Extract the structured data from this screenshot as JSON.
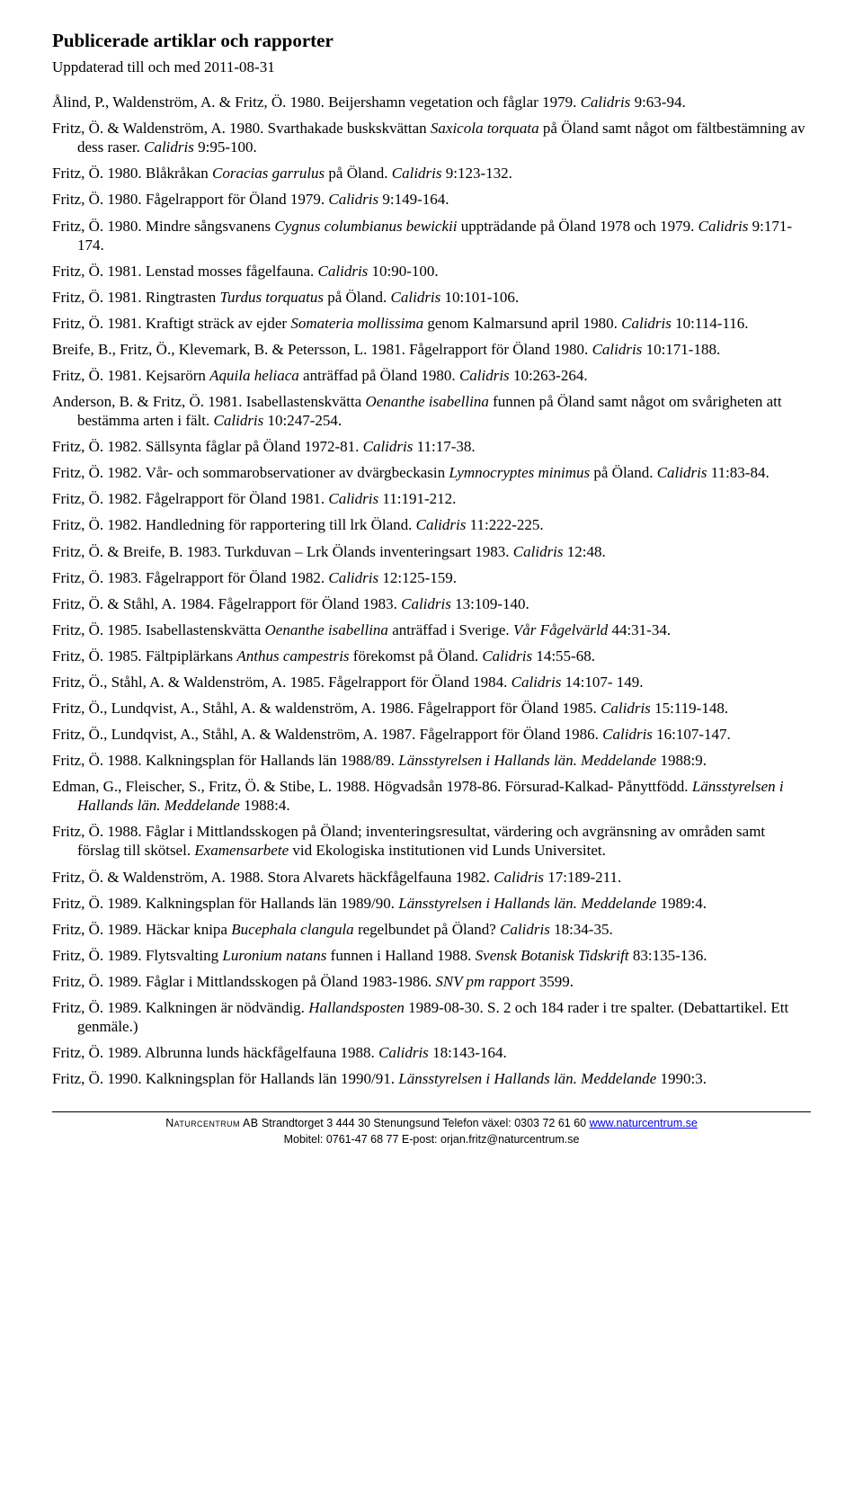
{
  "title": "Publicerade artiklar och rapporter",
  "updated": "Uppdaterad till och med 2011-08-31",
  "entries": [
    {
      "plain": "Ålind, P., Waldenström, A. & Fritz, Ö. 1980. Beijershamn vegetation och fåglar 1979. ",
      "ital": "Calidris",
      "tail": " 9:63-94."
    },
    {
      "plain": "Fritz, Ö. & Waldenström, A. 1980. Svarthakade buskskvättan ",
      "ital": "Saxicola torquata",
      "tail": " på Öland samt något om fältbestämning av dess raser. ",
      "ital2": "Calidris",
      "tail2": " 9:95-100."
    },
    {
      "plain": "Fritz, Ö. 1980. Blåkråkan ",
      "ital": "Coracias garrulus",
      "tail": " på Öland. ",
      "ital2": "Calidris",
      "tail2": " 9:123-132."
    },
    {
      "plain": "Fritz, Ö. 1980. Fågelrapport för Öland 1979. ",
      "ital": "Calidris",
      "tail": " 9:149-164."
    },
    {
      "plain": "Fritz, Ö. 1980. Mindre sångsvanens ",
      "ital": "Cygnus columbianus bewickii",
      "tail": " uppträdande på Öland 1978 och 1979. ",
      "ital2": "Calidris",
      "tail2": " 9:171-174."
    },
    {
      "plain": "Fritz, Ö. 1981. Lenstad mosses fågelfauna. ",
      "ital": "Calidris",
      "tail": " 10:90-100."
    },
    {
      "plain": "Fritz, Ö. 1981. Ringtrasten ",
      "ital": "Turdus torquatus",
      "tail": " på Öland. ",
      "ital2": "Calidris",
      "tail2": " 10:101-106."
    },
    {
      "plain": "Fritz, Ö. 1981. Kraftigt sträck av ejder ",
      "ital": "Somateria mollissima",
      "tail": " genom Kalmarsund april 1980. ",
      "ital2": "Calidris",
      "tail2": " 10:114-116."
    },
    {
      "plain": "Breife, B., Fritz, Ö., Klevemark, B. & Petersson, L. 1981. Fågelrapport för Öland 1980. ",
      "ital": "Calidris",
      "tail": " 10:171-188."
    },
    {
      "plain": "Fritz, Ö. 1981. Kejsarörn ",
      "ital": "Aquila heliaca",
      "tail": " anträffad på Öland 1980. ",
      "ital2": "Calidris",
      "tail2": " 10:263-264."
    },
    {
      "plain": "Anderson, B. & Fritz, Ö. 1981. Isabellastenskvätta ",
      "ital": "Oenanthe isabellina",
      "tail": " funnen på Öland samt något om svårigheten att bestämma arten i fält. ",
      "ital2": "Calidris",
      "tail2": " 10:247-254."
    },
    {
      "plain": "Fritz, Ö. 1982. Sällsynta fåglar på Öland 1972-81. ",
      "ital": "Calidris",
      "tail": " 11:17-38."
    },
    {
      "plain": "Fritz, Ö. 1982. Vår- och sommarobservationer av dvärgbeckasin ",
      "ital": "Lymnocryptes minimus",
      "tail": " på Öland. ",
      "ital2": "Calidris",
      "tail2": " 11:83-84."
    },
    {
      "plain": "Fritz, Ö. 1982. Fågelrapport för Öland 1981. ",
      "ital": "Calidris",
      "tail": " 11:191-212."
    },
    {
      "plain": "Fritz, Ö. 1982. Handledning för rapportering till lrk Öland. ",
      "ital": "Calidris",
      "tail": " 11:222-225."
    },
    {
      "plain": "Fritz, Ö. & Breife, B. 1983. Turkduvan – Lrk Ölands inventeringsart 1983. ",
      "ital": "Calidris",
      "tail": " 12:48."
    },
    {
      "plain": "Fritz, Ö. 1983. Fågelrapport för Öland 1982. ",
      "ital": "Calidris",
      "tail": " 12:125-159."
    },
    {
      "plain": "Fritz, Ö. & Ståhl, A. 1984. Fågelrapport för Öland 1983. ",
      "ital": "Calidris",
      "tail": " 13:109-140."
    },
    {
      "plain": "Fritz, Ö. 1985. Isabellastenskvätta ",
      "ital": "Oenanthe isabellina",
      "tail": " anträffad i Sverige. ",
      "ital2": "Vår Fågelvärld",
      "tail2": " 44:31-34."
    },
    {
      "plain": "Fritz, Ö. 1985. Fältpiplärkans ",
      "ital": "Anthus campestris",
      "tail": " förekomst på Öland. ",
      "ital2": "Calidris",
      "tail2": " 14:55-68."
    },
    {
      "plain": "Fritz, Ö., Ståhl, A. & Waldenström, A. 1985. Fågelrapport för Öland 1984. ",
      "ital": "Calidris",
      "tail": " 14:107- 149."
    },
    {
      "plain": "Fritz, Ö., Lundqvist, A., Ståhl, A. & waldenström, A. 1986. Fågelrapport för Öland 1985. ",
      "ital": "Calidris",
      "tail": " 15:119-148."
    },
    {
      "plain": "Fritz, Ö., Lundqvist, A., Ståhl, A. & Waldenström, A. 1987. Fågelrapport för Öland 1986. ",
      "ital": "Calidris",
      "tail": " 16:107-147."
    },
    {
      "plain": "Fritz, Ö. 1988. Kalkningsplan för Hallands län 1988/89. ",
      "ital": "Länsstyrelsen i Hallands län. Meddelande",
      "tail": " 1988:9."
    },
    {
      "plain": "Edman, G., Fleischer, S., Fritz, Ö. & Stibe, L. 1988. Högvadsån 1978-86. Försurad-Kalkad- Pånyttfödd. ",
      "ital": "Länsstyrelsen i Hallands län. Meddelande",
      "tail": " 1988:4."
    },
    {
      "plain": "Fritz, Ö. 1988. Fåglar i Mittlandsskogen på Öland; inventeringsresultat, värdering och avgränsning av områden samt förslag till skötsel. ",
      "ital": "Examensarbete",
      "tail": " vid Ekologiska institutionen vid Lunds Universitet."
    },
    {
      "plain": "Fritz, Ö. & Waldenström, A. 1988. Stora Alvarets häckfågelfauna 1982. ",
      "ital": "Calidris",
      "tail": " 17:189-211."
    },
    {
      "plain": "Fritz, Ö. 1989. Kalkningsplan för Hallands län 1989/90. ",
      "ital": "Länsstyrelsen i Hallands län. Meddelande",
      "tail": " 1989:4."
    },
    {
      "plain": "Fritz, Ö. 1989. Häckar knipa ",
      "ital": "Bucephala clangula",
      "tail": " regelbundet på Öland? ",
      "ital2": "Calidris",
      "tail2": " 18:34-35."
    },
    {
      "plain": "Fritz, Ö. 1989. Flytsvalting ",
      "ital": "Luronium natans",
      "tail": " funnen i Halland 1988. ",
      "ital2": "Svensk Botanisk Tidskrift",
      "tail2": " 83:135-136."
    },
    {
      "plain": "Fritz, Ö. 1989. Fåglar i Mittlandsskogen på Öland 1983-1986. ",
      "ital": "SNV pm rapport",
      "tail": " 3599."
    },
    {
      "plain": "Fritz, Ö. 1989. Kalkningen är nödvändig. ",
      "ital": "Hallandsposten",
      "tail": " 1989-08-30. S. 2 och 184 rader i tre spalter. (Debattartikel. Ett genmäle.)"
    },
    {
      "plain": "Fritz, Ö. 1989. Albrunna lunds häckfågelfauna 1988. ",
      "ital": "Calidris",
      "tail": " 18:143-164."
    },
    {
      "plain": "Fritz, Ö. 1990. Kalkningsplan för Hallands län 1990/91. ",
      "ital": "Länsstyrelsen i Hallands län. Meddelande",
      "tail": " 1990:3."
    }
  ],
  "footer": {
    "line1a": "Naturcentrum AB",
    "line1b": "   Strandtorget 3   444 30 Stenungsund   Telefon växel: 0303 72 61 60   ",
    "link": "www.naturcentrum.se",
    "line2": "Mobitel: 0761-47 68 77   E-post: orjan.fritz@naturcentrum.se"
  }
}
